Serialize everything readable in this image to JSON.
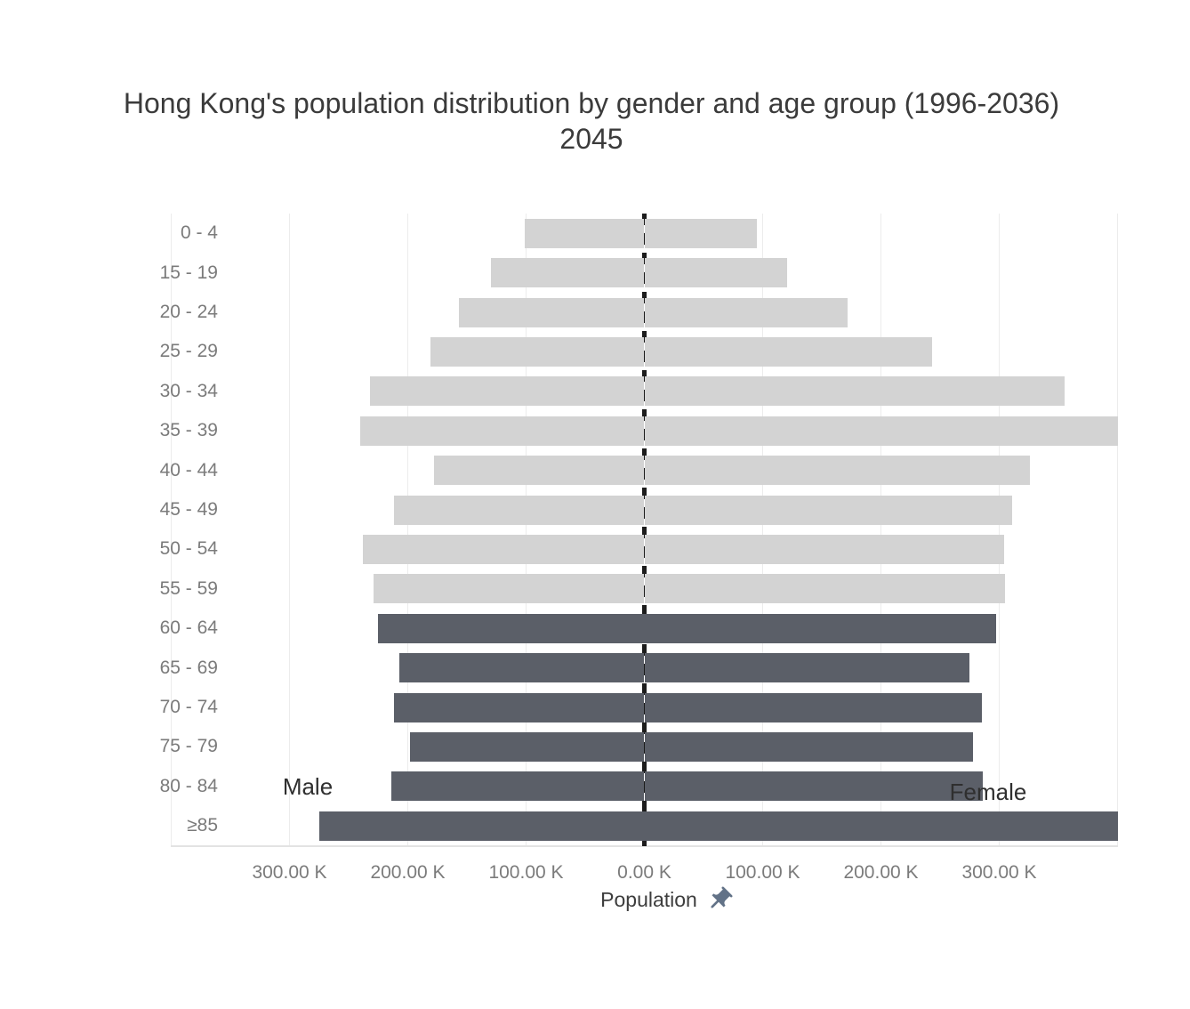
{
  "title": {
    "line1": "Hong Kong's population distribution by gender and age group (1996-2036)",
    "line2": "2045"
  },
  "chart_data": {
    "type": "bar",
    "subtype": "population-pyramid",
    "title": "Hong Kong's population distribution by gender and age group (1996-2036) 2045",
    "xlabel": "Population",
    "ylabel": "",
    "unit": "thousands",
    "categories": [
      "0 - 4",
      "15 - 19",
      "20 - 24",
      "25 - 29",
      "30 - 34",
      "35 - 39",
      "40 - 44",
      "45 - 49",
      "50 - 54",
      "55 - 59",
      "60 - 64",
      "65 - 69",
      "70 - 74",
      "75 - 79",
      "80 - 84",
      "≥85"
    ],
    "series": [
      {
        "name": "Male",
        "side": "left",
        "values_k": [
          101,
          130,
          157,
          181,
          232,
          240,
          178,
          212,
          238,
          229,
          225,
          207,
          212,
          198,
          214,
          275
        ]
      },
      {
        "name": "Female",
        "side": "right",
        "values_k": [
          95,
          121,
          172,
          243,
          355,
          400,
          326,
          311,
          304,
          305,
          297,
          275,
          285,
          278,
          286,
          400
        ]
      }
    ],
    "xlim_k": [
      -400,
      400
    ],
    "x_ticks": [
      {
        "value_k": -300,
        "label": "300.00 K"
      },
      {
        "value_k": -200,
        "label": "200.00 K"
      },
      {
        "value_k": -100,
        "label": "100.00 K"
      },
      {
        "value_k": 0,
        "label": "0.00 K"
      },
      {
        "value_k": 100,
        "label": "100.00 K"
      },
      {
        "value_k": 200,
        "label": "200.00 K"
      },
      {
        "value_k": 300,
        "label": "300.00 K"
      }
    ],
    "gridline_values_k": [
      -400,
      -300,
      -200,
      -100,
      100,
      200,
      300,
      400
    ],
    "grid": "vertical-on",
    "legend_position": "none",
    "annotations": [
      {
        "text": "Male"
      },
      {
        "text": "Female"
      }
    ],
    "colors": {
      "bar_young": "#d3d3d3",
      "bar_senior": "#5b5f68",
      "senior_from_index": 10,
      "gridline": "#ececec",
      "zero_line": "#1c1c1c",
      "tick_text": "#7b7b7b",
      "title_text": "#3b3b3b",
      "pin_icon": "#627287"
    }
  },
  "icons": {
    "pushpin": "pushpin-icon"
  }
}
